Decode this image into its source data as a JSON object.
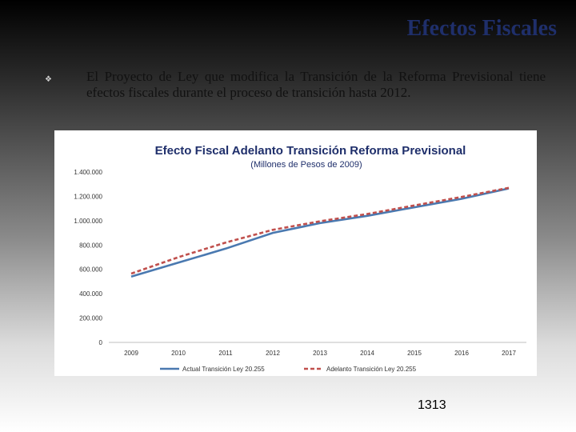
{
  "slide": {
    "title": "Efectos Fiscales",
    "bullet_text": "El Proyecto de Ley que modifica la Transición de la Reforma Previsional tiene efectos fiscales durante el proceso de transición hasta 2012.",
    "page_number": "1313"
  },
  "colors": {
    "title": "#1f2f6b",
    "series_actual": "#4a79b0",
    "series_adelanto": "#c0504d"
  },
  "chart_data": {
    "type": "line",
    "title": "Efecto Fiscal Adelanto Transición Reforma Previsional",
    "subtitle": "(Millones de Pesos de 2009)",
    "xlabel": "",
    "ylabel": "",
    "x": [
      "2009",
      "2010",
      "2011",
      "2012",
      "2013",
      "2014",
      "2015",
      "2016",
      "2017"
    ],
    "ylim": [
      0,
      1400000
    ],
    "yticks": [
      0,
      200000,
      400000,
      600000,
      800000,
      1000000,
      1200000,
      1400000
    ],
    "ytick_labels": [
      "0",
      "200.000",
      "400.000",
      "600.000",
      "800.000",
      "1.000.000",
      "1.200.000",
      "1.400.000"
    ],
    "grid": false,
    "legend": "bottom",
    "series": [
      {
        "name": "Actual Transición Ley 20.255",
        "style": "solid",
        "values": [
          540000,
          655000,
          770000,
          900000,
          980000,
          1040000,
          1110000,
          1180000,
          1265000
        ]
      },
      {
        "name": "Adelanto Transición Ley 20.255",
        "style": "dashed",
        "values": [
          565000,
          700000,
          820000,
          925000,
          995000,
          1055000,
          1125000,
          1195000,
          1270000
        ]
      }
    ]
  }
}
